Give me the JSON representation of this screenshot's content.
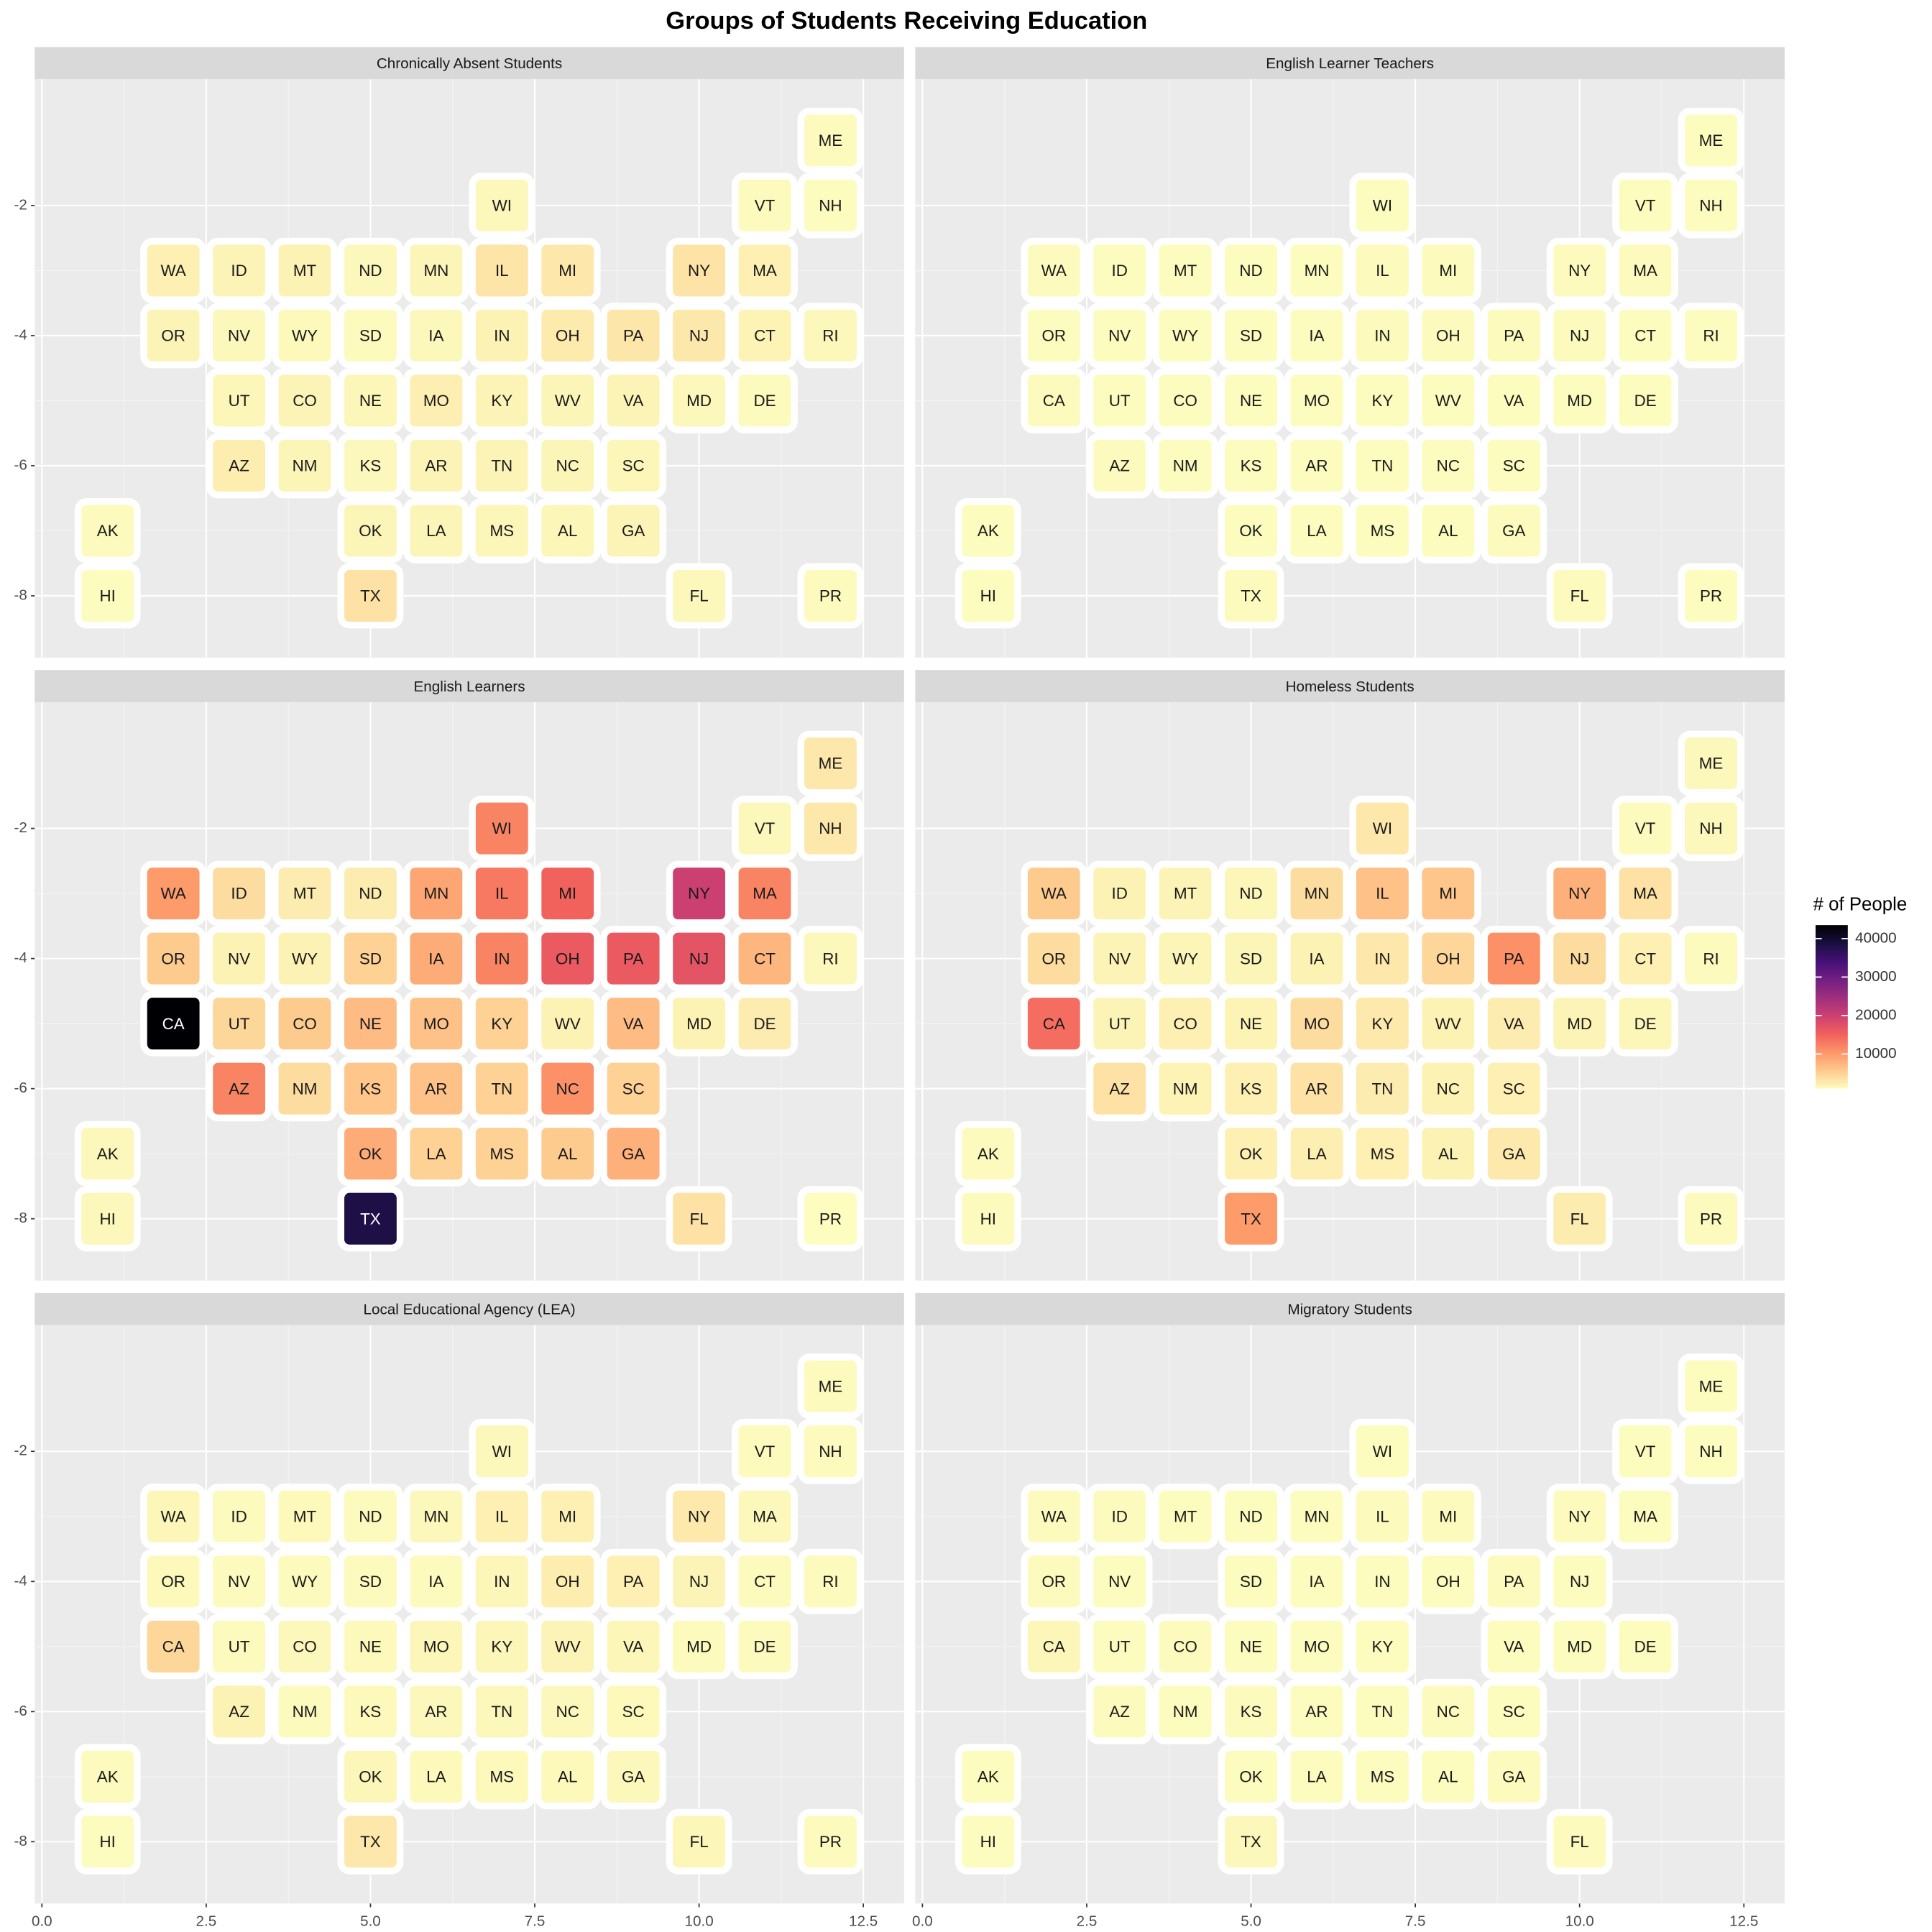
{
  "chart_data": {
    "type": "tile_map",
    "title": "Groups of Students Receiving Education",
    "legend_title": "# of People",
    "states": [
      "ME",
      "WI",
      "VT",
      "NH",
      "WA",
      "ID",
      "MT",
      "ND",
      "MN",
      "IL",
      "MI",
      "NY",
      "MA",
      "OR",
      "NV",
      "WY",
      "SD",
      "IA",
      "IN",
      "OH",
      "PA",
      "NJ",
      "CT",
      "RI",
      "CA",
      "UT",
      "CO",
      "NE",
      "MO",
      "KY",
      "WV",
      "VA",
      "MD",
      "DE",
      "AZ",
      "NM",
      "KS",
      "AR",
      "TN",
      "NC",
      "SC",
      "AK",
      "OK",
      "LA",
      "MS",
      "AL",
      "GA",
      "HI",
      "TX",
      "FL",
      "PR"
    ],
    "x": [
      12,
      7,
      11,
      12,
      2,
      3,
      4,
      5,
      6,
      7,
      8,
      10,
      11,
      2,
      3,
      4,
      5,
      6,
      7,
      8,
      9,
      10,
      11,
      12,
      2,
      3,
      4,
      5,
      6,
      7,
      8,
      9,
      10,
      11,
      3,
      4,
      5,
      6,
      7,
      8,
      9,
      1,
      5,
      6,
      7,
      8,
      9,
      1,
      5,
      10,
      12
    ],
    "y": [
      -1,
      -2,
      -2,
      -2,
      -3,
      -3,
      -3,
      -3,
      -3,
      -3,
      -3,
      -3,
      -3,
      -4,
      -4,
      -4,
      -4,
      -4,
      -4,
      -4,
      -4,
      -4,
      -4,
      -4,
      -5,
      -5,
      -5,
      -5,
      -5,
      -5,
      -5,
      -5,
      -5,
      -5,
      -6,
      -6,
      -6,
      -6,
      -6,
      -6,
      -6,
      -7,
      -7,
      -7,
      -7,
      -7,
      -7,
      -8,
      -8,
      -8,
      -8
    ],
    "xlim": [
      -0.11,
      13.12
    ],
    "xticks": [
      {
        "value": 0,
        "label": "0.0"
      },
      2.5,
      {
        "value": 5,
        "label": "5.0"
      },
      7.5,
      {
        "value": 10,
        "label": "10.0"
      },
      12.5
    ],
    "ylim": [
      -8.95,
      -0.06
    ],
    "yticks": [
      -2,
      -4,
      -6,
      -8
    ],
    "colorlim": [
      1000,
      43500
    ],
    "colorticks": [
      10000,
      20000,
      30000,
      40000
    ],
    "colors": [
      "#fcfdbf",
      "#fec98d",
      "#fd9668",
      "#f1605d",
      "#cd4071",
      "#9f2f7f",
      "#721f81",
      "#451077",
      "#180f3e",
      "#000004"
    ],
    "grid": true,
    "facets": [
      {
        "title": "Chronically Absent Students",
        "values": [
          1200,
          1500,
          1300,
          1100,
          2200,
          1800,
          2000,
          1500,
          1700,
          3200,
          3000,
          3400,
          2200,
          1800,
          1500,
          1400,
          1300,
          1500,
          2000,
          2700,
          3100,
          2900,
          1900,
          1500,
          null,
          1600,
          1800,
          1600,
          2300,
          1800,
          1700,
          1800,
          1500,
          1300,
          2400,
          1700,
          1500,
          1800,
          1800,
          1700,
          1600,
          1200,
          1700,
          1700,
          1600,
          1600,
          1800,
          1100,
          3500,
          1500,
          1200
        ]
      },
      {
        "title": "English Learner Teachers",
        "values": [
          1100,
          1100,
          1050,
          1050,
          1150,
          1100,
          1100,
          1050,
          1100,
          1200,
          1150,
          1250,
          1150,
          1100,
          1100,
          1050,
          1050,
          1100,
          1150,
          1150,
          1200,
          1200,
          1100,
          1050,
          1300,
          1100,
          1100,
          1100,
          1100,
          1100,
          1050,
          1100,
          1100,
          1050,
          1150,
          1100,
          1100,
          1100,
          1100,
          1100,
          1100,
          1050,
          1100,
          1100,
          1100,
          1100,
          1150,
          1050,
          1300,
          1150,
          1050
        ]
      },
      {
        "title": "English Learners",
        "values": [
          3000,
          12000,
          1500,
          3000,
          10000,
          4000,
          2500,
          2500,
          9000,
          13000,
          15000,
          20000,
          12000,
          5500,
          2000,
          2000,
          5000,
          8500,
          12000,
          16000,
          16000,
          17000,
          7500,
          1500,
          43500,
          4500,
          5500,
          7000,
          6500,
          5000,
          2000,
          7000,
          2000,
          2500,
          12000,
          4000,
          6000,
          6500,
          5000,
          11000,
          5000,
          1500,
          8500,
          5000,
          5000,
          5500,
          8000,
          1500,
          38000,
          3500,
          1000
        ]
      },
      {
        "title": "Homeless Students",
        "values": [
          1500,
          3000,
          1300,
          1500,
          5500,
          2000,
          1800,
          1600,
          4000,
          6500,
          6000,
          8000,
          3500,
          4000,
          1800,
          1700,
          1700,
          2000,
          3000,
          4500,
          11000,
          4000,
          2200,
          1300,
          14000,
          1800,
          2200,
          1900,
          4000,
          2800,
          2000,
          2500,
          1800,
          1600,
          3500,
          1900,
          2200,
          3500,
          2500,
          2000,
          2200,
          1300,
          2200,
          2300,
          2200,
          2000,
          2800,
          1300,
          10000,
          2500,
          1300
        ]
      },
      {
        "title": "Local Educational Agency (LEA)",
        "values": [
          1300,
          1500,
          1200,
          1200,
          1600,
          1300,
          1400,
          1300,
          1500,
          2200,
          2200,
          2800,
          1500,
          1400,
          1200,
          1300,
          1300,
          1300,
          1600,
          2400,
          2200,
          1800,
          1300,
          1200,
          4500,
          1300,
          1500,
          1400,
          1600,
          1600,
          1800,
          1600,
          1300,
          1200,
          2000,
          1300,
          1400,
          1500,
          1500,
          1500,
          1400,
          1300,
          1600,
          1400,
          1400,
          1400,
          1500,
          1100,
          3000,
          1600,
          1200
        ]
      },
      {
        "title": "Migratory Students",
        "values": [
          1100,
          1100,
          1050,
          1050,
          1200,
          1150,
          1050,
          1050,
          1100,
          1150,
          1150,
          1200,
          1100,
          1300,
          1100,
          null,
          1050,
          1100,
          1100,
          1100,
          1150,
          1100,
          null,
          null,
          1600,
          1100,
          1150,
          1100,
          1100,
          1100,
          null,
          1100,
          1100,
          1050,
          1150,
          1100,
          1150,
          1100,
          1100,
          1150,
          1100,
          1100,
          1100,
          1100,
          1100,
          1100,
          1150,
          1050,
          1500,
          1300,
          null
        ]
      }
    ]
  }
}
